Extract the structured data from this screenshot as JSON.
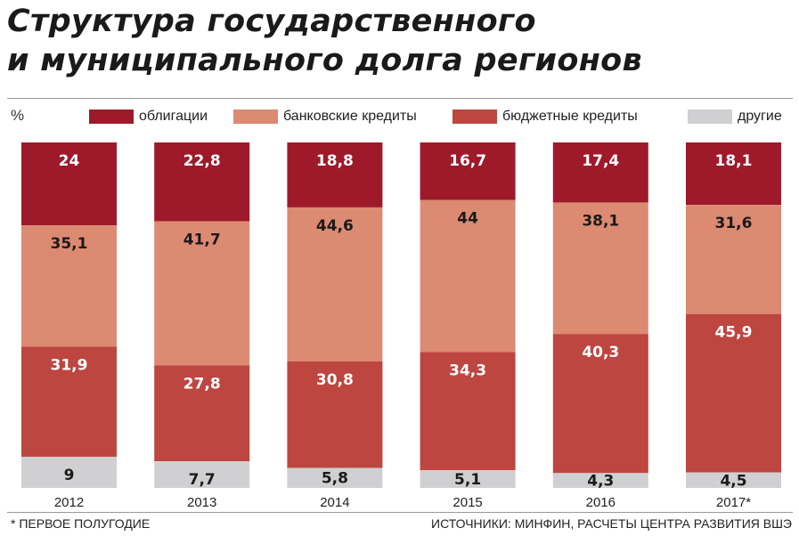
{
  "title_lines": [
    "Структура государственного",
    "и муниципального долга регионов"
  ],
  "unit_label": "%",
  "footnote": "* ПЕРВОЕ ПОЛУГОДИЕ",
  "source": "ИСТОЧНИКИ: МИНФИН, РАСЧЕТЫ ЦЕНТРА РАЗВИТИЯ ВШЭ",
  "colors": {
    "bonds": "#9e1a2b",
    "bank_credits": "#dc8a72",
    "budget_credits": "#be4640",
    "other": "#d0d0d2"
  },
  "chart_data": {
    "type": "bar",
    "stacked": true,
    "categories": [
      "2012",
      "2013",
      "2014",
      "2015",
      "2016",
      "2017*"
    ],
    "ylabel": "%",
    "ylim": [
      0,
      100
    ],
    "legend_position": "top",
    "series": [
      {
        "name": "облигации",
        "key": "bonds",
        "values": [
          "24",
          "22,8",
          "18,8",
          "16,7",
          "17,4",
          "18,1"
        ]
      },
      {
        "name": "банковские кредиты",
        "key": "bank_credits",
        "values": [
          "35,1",
          "41,7",
          "44,6",
          "44",
          "38,1",
          "31,6"
        ]
      },
      {
        "name": "бюджетные кредиты",
        "key": "budget_credits",
        "values": [
          "31,9",
          "27,8",
          "30,8",
          "34,3",
          "40,3",
          "45,9"
        ]
      },
      {
        "name": "другие",
        "key": "other",
        "values": [
          "9",
          "7,7",
          "5,8",
          "5,1",
          "4,3",
          "4,5"
        ]
      }
    ]
  }
}
